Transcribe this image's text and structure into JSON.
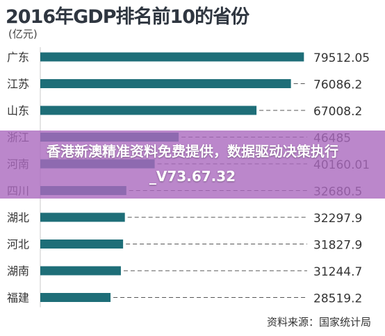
{
  "header": {
    "title": "2016年GDP排名前10的省份",
    "unit": "(亿元)"
  },
  "footer": {
    "source": "资料来源：国家统计局"
  },
  "overlay": {
    "text": "香港新澳精准资料免费提供，数据驱动决策执行_V73.67.32"
  },
  "colors": {
    "bar": "#1e6e78",
    "text": "#333333",
    "dash": "#555555",
    "axis": "#c8c8c8",
    "banner": "#aa69be"
  },
  "chart_data": {
    "type": "bar",
    "orientation": "horizontal",
    "title": "2016年GDP排名前10的省份",
    "unit": "(亿元)",
    "categories": [
      "广东",
      "江苏",
      "山东",
      "浙江",
      "河南",
      "四川",
      "湖北",
      "河北",
      "湖南",
      "福建"
    ],
    "values": [
      79512.05,
      76086.2,
      67008.2,
      46485,
      40160.01,
      32680.5,
      32297.9,
      31827.9,
      31244.7,
      28519.2
    ],
    "value_labels": [
      "79512.05",
      "76086.2",
      "67008.2",
      "46485",
      "40160.01",
      "32680.5",
      "32297.9",
      "31827.9",
      "31244.7",
      "28519.2"
    ],
    "xlim": [
      10000,
      80000
    ],
    "source": "资料来源：国家统计局"
  }
}
